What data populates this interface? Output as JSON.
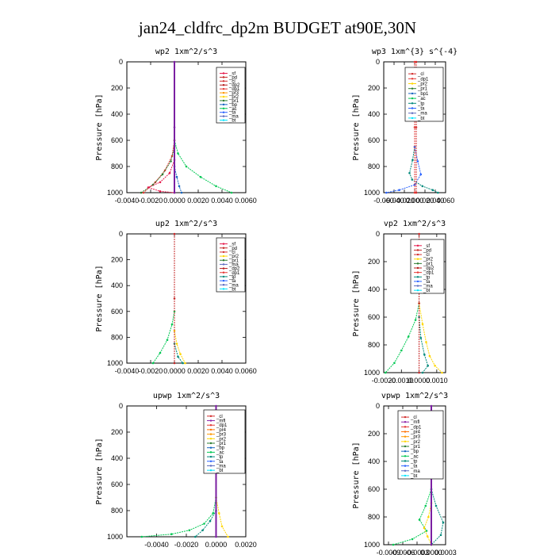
{
  "page": {
    "title": "jan24_cldfrc_dp2m  BUDGET at90E,30N"
  },
  "colors": {
    "sf": "#e6194b",
    "pd": "#c62828",
    "cl": "#d32f2f",
    "dp2": "#b71c1c",
    "dp1": "#e53935",
    "pr3": "#ff9800",
    "pr2": "#ffd600",
    "pr1": "#2e7d32",
    "bp": "#1565c0",
    "ac": "#00c853",
    "ta": "#2962ff",
    "ma": "#5c6bc0",
    "bt": "#00e5ff",
    "mfl": "#8e24aa",
    "pr4": "#ff6f00",
    "tp": "#00897b",
    "sum": "#7b1fa2"
  },
  "chart_data": [
    {
      "type": "line",
      "title": "wp2  1xm^2/s^3",
      "ylabel": "Pressure [hPa]",
      "xlim": [
        -0.004,
        0.006
      ],
      "ylim": [
        1000,
        0
      ],
      "xticks": [
        "-0.0040",
        "-0.0020",
        "0.0000",
        "0.0020",
        "0.0040",
        "0.0060"
      ],
      "yticks": [
        "0",
        "200",
        "400",
        "600",
        "800",
        "1000"
      ],
      "legend_entries": [
        "_sf",
        "_pd",
        "_cl",
        "_dp2",
        "_dp1",
        "_pr3",
        "_pr2",
        "_pr1",
        "_bp",
        "_ac",
        "_ta",
        "_ma",
        "_bt"
      ],
      "series": [
        {
          "name": "_ac",
          "color": "ac",
          "x": [
            0.0,
            0.0003,
            0.001,
            0.0022,
            0.0035,
            0.0048
          ],
          "y": [
            600,
            700,
            800,
            880,
            950,
            1000
          ]
        },
        {
          "name": "_dp1",
          "color": "dp1",
          "x": [
            0.0,
            -0.0002,
            -0.0008,
            -0.0016,
            -0.0026
          ],
          "y": [
            600,
            720,
            830,
            920,
            1000
          ]
        },
        {
          "name": "_pr1",
          "color": "pr1",
          "x": [
            0.0,
            -0.0003,
            -0.001,
            -0.0018,
            -0.0028
          ],
          "y": [
            650,
            760,
            860,
            940,
            1000
          ]
        },
        {
          "name": "_sf",
          "color": "sf",
          "x": [
            0.0,
            -0.0004,
            -0.0012,
            -0.0022,
            -0.0012,
            0.0
          ],
          "y": [
            750,
            850,
            920,
            960,
            990,
            1000
          ]
        },
        {
          "name": "_bp",
          "color": "bp",
          "x": [
            0.0,
            0.0002,
            0.0004,
            0.0006
          ],
          "y": [
            800,
            880,
            950,
            1000
          ]
        },
        {
          "name": "_sum",
          "color": "sum",
          "x": [
            0.0,
            0.0,
            0.0
          ],
          "y": [
            0,
            500,
            1000
          ]
        }
      ]
    },
    {
      "type": "line",
      "title": "wp3  1xm^{3} s^{-4}",
      "ylabel": "Pressure [hPa]",
      "xlim": [
        -0.06,
        0.06
      ],
      "ylim": [
        1000,
        0
      ],
      "xticks": [
        "-0.060",
        "-0.040",
        "-0.020",
        "0.000",
        "0.020",
        "0.040",
        "0.060"
      ],
      "yticks": [
        "0",
        "200",
        "400",
        "600",
        "800",
        "1000"
      ],
      "legend_entries": [
        "_cl",
        "_dp1",
        "_pr2",
        "_pr1",
        "_bp1",
        "_ac",
        "_tp",
        "_ta",
        "_ma",
        "_bt"
      ],
      "series": [
        {
          "name": "_tp",
          "color": "tp",
          "x": [
            0.0,
            -0.004,
            -0.01,
            -0.005,
            0.015,
            0.035,
            0.045
          ],
          "y": [
            650,
            750,
            850,
            900,
            950,
            980,
            1000
          ]
        },
        {
          "name": "_ta",
          "color": "ta",
          "x": [
            0.0,
            0.006,
            0.012,
            0.0,
            -0.03,
            -0.055
          ],
          "y": [
            650,
            760,
            860,
            940,
            980,
            1000
          ]
        },
        {
          "name": "_dp1",
          "color": "dp1",
          "x": [
            0.0,
            0.0,
            0.0
          ],
          "y": [
            0,
            500,
            1000
          ]
        },
        {
          "name": "_cl",
          "color": "cl",
          "x": [
            0.003,
            0.003,
            0.003
          ],
          "y": [
            0,
            500,
            1000
          ]
        }
      ]
    },
    {
      "type": "line",
      "title": "up2  1xm^2/s^3",
      "ylabel": "Pressure [hPa]",
      "xlim": [
        -0.004,
        0.006
      ],
      "ylim": [
        1000,
        0
      ],
      "xticks": [
        "-0.0040",
        "-0.0020",
        "0.0000",
        "0.0020",
        "0.0040",
        "0.0060"
      ],
      "yticks": [
        "0",
        "200",
        "400",
        "600",
        "800",
        "1000"
      ],
      "legend_entries": [
        "_sf",
        "_pd",
        "_cl",
        "_pr2",
        "_pr1",
        "_ma",
        "_dp2",
        "_dp1",
        "_tp",
        "_ta",
        "_ma",
        "_bt"
      ],
      "series": [
        {
          "name": "_dp1",
          "color": "ac",
          "x": [
            0.0,
            -0.0002,
            -0.0006,
            -0.0012,
            -0.0018
          ],
          "y": [
            600,
            700,
            820,
            920,
            1000
          ]
        },
        {
          "name": "_pr2",
          "color": "pr2",
          "x": [
            0.0,
            0.0002,
            0.0005,
            0.0009
          ],
          "y": [
            750,
            850,
            930,
            1000
          ]
        },
        {
          "name": "_tp",
          "color": "tp",
          "x": [
            0.0,
            0.0003,
            0.0007
          ],
          "y": [
            850,
            950,
            1000
          ]
        },
        {
          "name": "_pd",
          "color": "pd",
          "x": [
            0.0,
            0.0,
            0.0
          ],
          "y": [
            0,
            500,
            1000
          ]
        }
      ]
    },
    {
      "type": "line",
      "title": "vp2  1xm^2/s^3",
      "ylabel": "Pressure [hPa]",
      "xlim": [
        -0.002,
        0.0015
      ],
      "ylim": [
        1000,
        0
      ],
      "xticks": [
        "-0.0020",
        "-0.0010",
        "0.0000",
        "0.0010"
      ],
      "yticks": [
        "0",
        "200",
        "400",
        "600",
        "800",
        "1000"
      ],
      "legend_entries": [
        "_sf",
        "_pd",
        "_cl",
        "_pr2",
        "_pr1",
        "_dp2",
        "_dp1",
        "_tp",
        "_ta",
        "_ma",
        "_bt"
      ],
      "series": [
        {
          "name": "_dp1",
          "color": "ac",
          "x": [
            0.0,
            -0.0002,
            -0.0006,
            -0.001,
            -0.0014,
            -0.0019
          ],
          "y": [
            500,
            620,
            740,
            840,
            930,
            1000
          ]
        },
        {
          "name": "_pr2",
          "color": "pr2",
          "x": [
            0.0,
            0.0002,
            0.0004,
            0.0006,
            0.0009,
            0.0013
          ],
          "y": [
            500,
            650,
            780,
            880,
            950,
            1000
          ]
        },
        {
          "name": "_tp",
          "color": "tp",
          "x": [
            0.0,
            0.0001,
            0.0003,
            0.0005,
            0.0002
          ],
          "y": [
            600,
            750,
            870,
            950,
            1000
          ]
        },
        {
          "name": "_pd",
          "color": "pd",
          "x": [
            0.0,
            0.0,
            0.0
          ],
          "y": [
            0,
            500,
            1000
          ]
        }
      ]
    },
    {
      "type": "line",
      "title": "upwp  1xm^2/s^3",
      "ylabel": "Pressure [hPa]",
      "xlim": [
        -0.006,
        0.002
      ],
      "ylim": [
        1000,
        0
      ],
      "xticks": [
        "-0.0040",
        "-0.0020",
        "0.0000",
        "0.0020"
      ],
      "yticks": [
        "0",
        "200",
        "400",
        "600",
        "800",
        "1000"
      ],
      "legend_entries": [
        "_cl",
        "_mfl",
        "_dp1",
        "_pr4",
        "_pr3",
        "_pr2",
        "_pr1",
        "_bp",
        "_ac",
        "_tp",
        "_ta",
        "_ma",
        "_bt"
      ],
      "series": [
        {
          "name": "_ac",
          "color": "ac",
          "x": [
            0.0,
            -0.0002,
            -0.0008,
            -0.0018,
            -0.003,
            -0.005
          ],
          "y": [
            700,
            820,
            900,
            950,
            980,
            1000
          ]
        },
        {
          "name": "_tp",
          "color": "tp",
          "x": [
            0.0,
            -0.0004,
            -0.0009,
            -0.0014
          ],
          "y": [
            800,
            880,
            950,
            1000
          ]
        },
        {
          "name": "_pr2",
          "color": "pr2",
          "x": [
            0.0,
            0.0002,
            0.0004,
            0.0008
          ],
          "y": [
            700,
            820,
            920,
            1000
          ]
        },
        {
          "name": "_sum",
          "color": "sum",
          "x": [
            0.0,
            0.0,
            0.0
          ],
          "y": [
            0,
            500,
            1000
          ]
        }
      ]
    },
    {
      "type": "line",
      "title": "vpwp  1xm^2/s^3",
      "ylabel": "Pressure [hPa]",
      "xlim": [
        -0.001,
        0.0003
      ],
      "ylim": [
        1000,
        0
      ],
      "xticks": [
        "-0.0009",
        "-0.0006",
        "-0.0003",
        "0.0000",
        "0.0003"
      ],
      "yticks": [
        "0",
        "200",
        "400",
        "600",
        "800",
        "1000"
      ],
      "legend_entries": [
        "_cl",
        "_mfl",
        "_dp1",
        "_pr4",
        "_pr3",
        "_pr2",
        "_pr1",
        "_bp",
        "_ac",
        "_tp",
        "_ta",
        "_ma",
        "_bt"
      ],
      "series": [
        {
          "name": "_tp",
          "color": "tp",
          "x": [
            0.0,
            0.0001,
            0.00025,
            0.0002,
            0.0
          ],
          "y": [
            600,
            720,
            840,
            930,
            1000
          ]
        },
        {
          "name": "_ac",
          "color": "ac",
          "x": [
            0.0,
            -0.00012,
            -0.00025,
            -0.0001,
            -0.0004,
            -0.0008
          ],
          "y": [
            600,
            720,
            820,
            900,
            960,
            1000
          ]
        },
        {
          "name": "_pr2",
          "color": "pr2",
          "x": [
            0.0,
            -6e-05,
            -0.00015,
            -8e-05,
            0.0
          ],
          "y": [
            700,
            800,
            880,
            940,
            1000
          ]
        },
        {
          "name": "_sum",
          "color": "sum",
          "x": [
            0.0,
            0.0,
            0.0
          ],
          "y": [
            0,
            500,
            1000
          ]
        }
      ]
    }
  ]
}
